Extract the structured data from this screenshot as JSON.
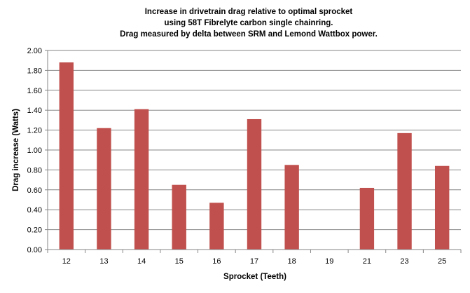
{
  "chart_data": {
    "type": "bar",
    "title_lines": [
      "Increase in drivetrain drag relative to optimal sprocket",
      "using 58T Fibrelyte carbon single chainring.",
      "Drag measured by delta between SRM and Lemond Wattbox power."
    ],
    "xlabel": "Sprocket (Teeth)",
    "ylabel": "Drag increase  (Watts)",
    "categories": [
      "12",
      "13",
      "14",
      "15",
      "16",
      "17",
      "18",
      "19",
      "21",
      "23",
      "25"
    ],
    "values": [
      1.88,
      1.22,
      1.41,
      0.65,
      0.47,
      1.31,
      0.85,
      0.0,
      0.62,
      1.17,
      0.84
    ],
    "ylim": [
      0,
      2.0
    ],
    "ytick_step": 0.2,
    "ytick_decimals": 2,
    "grid": true,
    "legend": "none",
    "bar_color": "#C0504D",
    "grid_color": "#868686",
    "axis_color": "#868686"
  }
}
